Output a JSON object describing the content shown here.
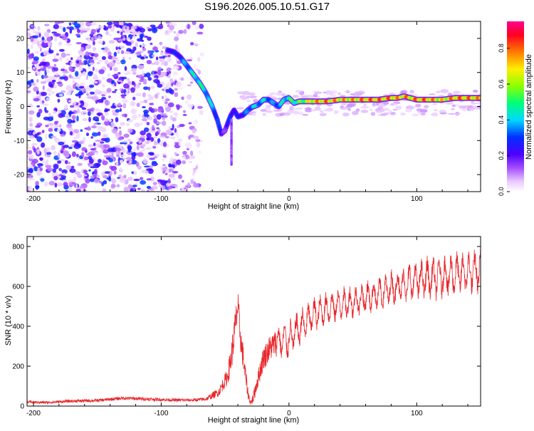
{
  "figure_title": "S196.2026.005.10.51.G17",
  "chart_data": [
    {
      "type": "heatmap",
      "name": "spectrogram",
      "title": "S196.2026.005.10.51.G17",
      "xlabel": "Height of straight line (km)",
      "ylabel": "Frequency (Hz)",
      "xlim": [
        -205,
        150
      ],
      "ylim": [
        -25,
        25
      ],
      "xticks": [
        -200,
        -100,
        0,
        100
      ],
      "xtick_labels": [
        "-200",
        "-100",
        "0",
        "100"
      ],
      "yticks": [
        -20,
        -10,
        0,
        10,
        20
      ],
      "ytick_labels": [
        "-20",
        "-10",
        "0",
        "10",
        "20"
      ],
      "colorbar": {
        "label": "Normalized spectral amplitude",
        "range": [
          0,
          0.95
        ],
        "ticks": [
          0,
          0.2,
          0.4,
          0.6,
          0.8
        ],
        "tick_labels": [
          "0.0",
          "0.2",
          "0.4",
          "0.6",
          "0.8"
        ],
        "colormap": "rainbow (white-purple-blue-cyan-green-yellow-red-magenta)"
      },
      "noise_region": [
        -205,
        -68
      ],
      "ridge": {
        "x": [
          -95,
          -90,
          -85,
          -80,
          -75,
          -70,
          -65,
          -60,
          -56,
          -53,
          -50,
          -46,
          -43,
          -40,
          -36,
          -32,
          -28,
          -24,
          -20,
          -16,
          -12,
          -8,
          -4,
          0,
          4,
          8,
          12,
          20,
          30,
          40,
          50,
          60,
          70,
          80,
          85,
          90,
          95,
          100,
          110,
          120,
          130,
          140,
          150
        ],
        "frequency": [
          16.5,
          16,
          14.5,
          12,
          9.5,
          7,
          4,
          0,
          -4,
          -8,
          -7,
          -3,
          -1,
          -3,
          -2.5,
          -1,
          0,
          0.5,
          2,
          2,
          1,
          0,
          2,
          2.5,
          1,
          1.5,
          1.5,
          1.5,
          1.5,
          2,
          2,
          2,
          2,
          2.5,
          2.5,
          3,
          2.5,
          2,
          2,
          2,
          2.5,
          2.5,
          2.5
        ],
        "amplitude": [
          0.35,
          0.3,
          0.35,
          0.45,
          0.5,
          0.55,
          0.5,
          0.45,
          0.4,
          0.25,
          0.2,
          0.35,
          0.3,
          0.3,
          0.35,
          0.4,
          0.5,
          0.45,
          0.5,
          0.45,
          0.4,
          0.45,
          0.5,
          0.55,
          0.6,
          0.6,
          0.7,
          0.85,
          0.9,
          0.85,
          0.85,
          0.9,
          0.9,
          0.9,
          0.85,
          0.9,
          0.85,
          0.9,
          0.9,
          0.8,
          0.9,
          0.9,
          0.85
        ]
      }
    },
    {
      "type": "line",
      "name": "snr",
      "xlabel": "Height of straight line (km)",
      "ylabel": "SNR (10 * v/v)",
      "xlim": [
        -205,
        150
      ],
      "ylim": [
        0,
        850
      ],
      "xticks": [
        -200,
        -100,
        0,
        100
      ],
      "xtick_labels": [
        "-200",
        "-100",
        "0",
        "100"
      ],
      "yticks": [
        0,
        200,
        400,
        600,
        800
      ],
      "ytick_labels": [
        "0",
        "200",
        "400",
        "600",
        "800"
      ],
      "line_color": "#e8262a",
      "series": [
        {
          "name": "SNR",
          "x": [
            -205,
            -190,
            -170,
            -150,
            -130,
            -110,
            -90,
            -75,
            -65,
            -55,
            -48,
            -45,
            -42,
            -40,
            -38,
            -36,
            -34,
            -32,
            -30,
            -28,
            -25,
            -20,
            -15,
            -10,
            -5,
            0,
            5,
            10,
            15,
            20,
            30,
            40,
            50,
            60,
            70,
            80,
            90,
            100,
            110,
            120,
            130,
            140,
            150
          ],
          "y": [
            20,
            18,
            25,
            28,
            40,
            35,
            30,
            30,
            35,
            70,
            150,
            250,
            400,
            500,
            350,
            250,
            150,
            60,
            15,
            40,
            120,
            240,
            290,
            320,
            330,
            330,
            370,
            400,
            430,
            460,
            490,
            510,
            520,
            545,
            560,
            590,
            610,
            630,
            640,
            650,
            660,
            670,
            680
          ],
          "spread": [
            12,
            12,
            14,
            14,
            16,
            16,
            14,
            14,
            18,
            40,
            80,
            140,
            160,
            150,
            140,
            120,
            90,
            50,
            20,
            50,
            80,
            110,
            120,
            120,
            130,
            140,
            140,
            130,
            130,
            120,
            120,
            120,
            120,
            120,
            120,
            130,
            140,
            150,
            160,
            160,
            160,
            160,
            160
          ]
        }
      ]
    }
  ]
}
